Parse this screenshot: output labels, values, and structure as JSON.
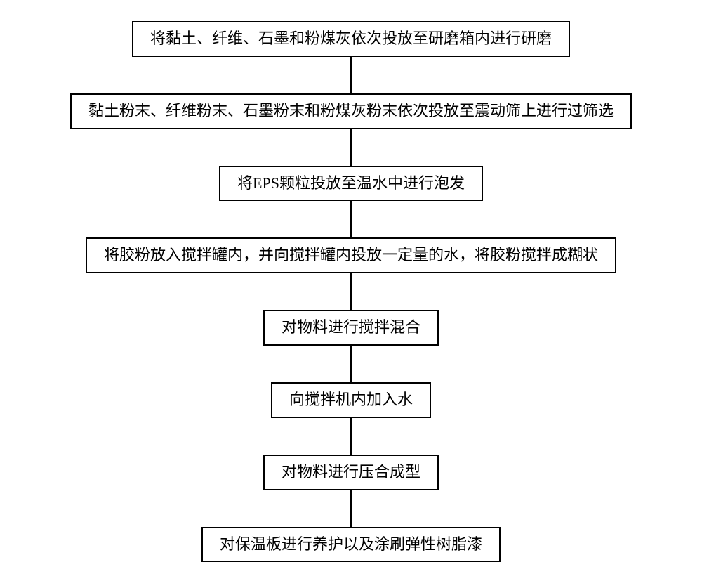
{
  "flowchart": {
    "type": "flowchart",
    "direction": "vertical",
    "background_color": "#ffffff",
    "box_border_color": "#000000",
    "box_border_width": 2,
    "box_background": "#ffffff",
    "text_color": "#000000",
    "font_size": 22,
    "font_family": "SimSun",
    "connector_color": "#000000",
    "connector_width": 2,
    "connector_height": 52,
    "box_padding_vertical": 8,
    "box_padding_horizontal": 24,
    "steps": [
      {
        "label": "将黏土、纤维、石墨和粉煤灰依次投放至研磨箱内进行研磨"
      },
      {
        "label": "黏土粉末、纤维粉末、石墨粉末和粉煤灰粉末依次投放至震动筛上进行过筛选"
      },
      {
        "label": "将EPS颗粒投放至温水中进行泡发"
      },
      {
        "label": "将胶粉放入搅拌罐内，并向搅拌罐内投放一定量的水，将胶粉搅拌成糊状"
      },
      {
        "label": "对物料进行搅拌混合"
      },
      {
        "label": "向搅拌机内加入水"
      },
      {
        "label": "对物料进行压合成型"
      },
      {
        "label": "对保温板进行养护以及涂刷弹性树脂漆"
      }
    ]
  }
}
